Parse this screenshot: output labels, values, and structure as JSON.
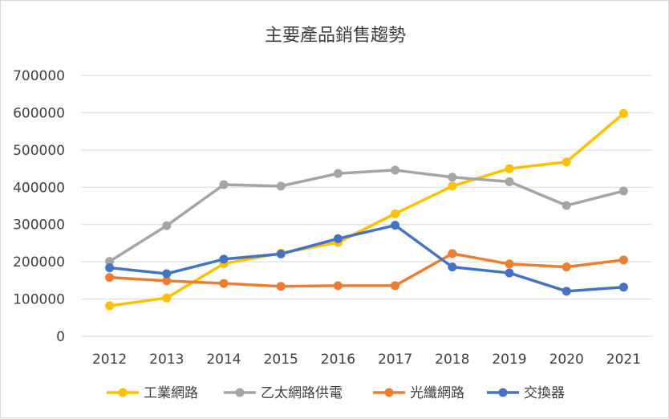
{
  "chart_data": {
    "type": "line",
    "title": "主要產品銷售趨勢",
    "xlabel": "",
    "ylabel": "",
    "categories": [
      "2012",
      "2013",
      "2014",
      "2015",
      "2016",
      "2017",
      "2018",
      "2019",
      "2020",
      "2021"
    ],
    "ylim": [
      0,
      700000
    ],
    "yticks": [
      "0",
      "100000",
      "200000",
      "300000",
      "400000",
      "500000",
      "600000",
      "700000"
    ],
    "grid": true,
    "legend_position": "bottom",
    "series": [
      {
        "name": "工業網路",
        "color": "#ffc000",
        "values": [
          82000,
          103000,
          195000,
          223000,
          252000,
          329000,
          403000,
          450000,
          468000,
          598000
        ]
      },
      {
        "name": "乙太網路供電",
        "color": "#a5a5a5",
        "values": [
          201000,
          297000,
          407000,
          403000,
          437000,
          446000,
          427000,
          415000,
          351000,
          390000
        ]
      },
      {
        "name": "光纖網路",
        "color": "#ed7d31",
        "values": [
          158000,
          149000,
          142000,
          134000,
          136000,
          136000,
          222000,
          194000,
          186000,
          205000
        ]
      },
      {
        "name": "交換器",
        "color": "#4472c4",
        "values": [
          184000,
          168000,
          207000,
          221000,
          262000,
          298000,
          186000,
          170000,
          121000,
          132000
        ]
      }
    ]
  }
}
